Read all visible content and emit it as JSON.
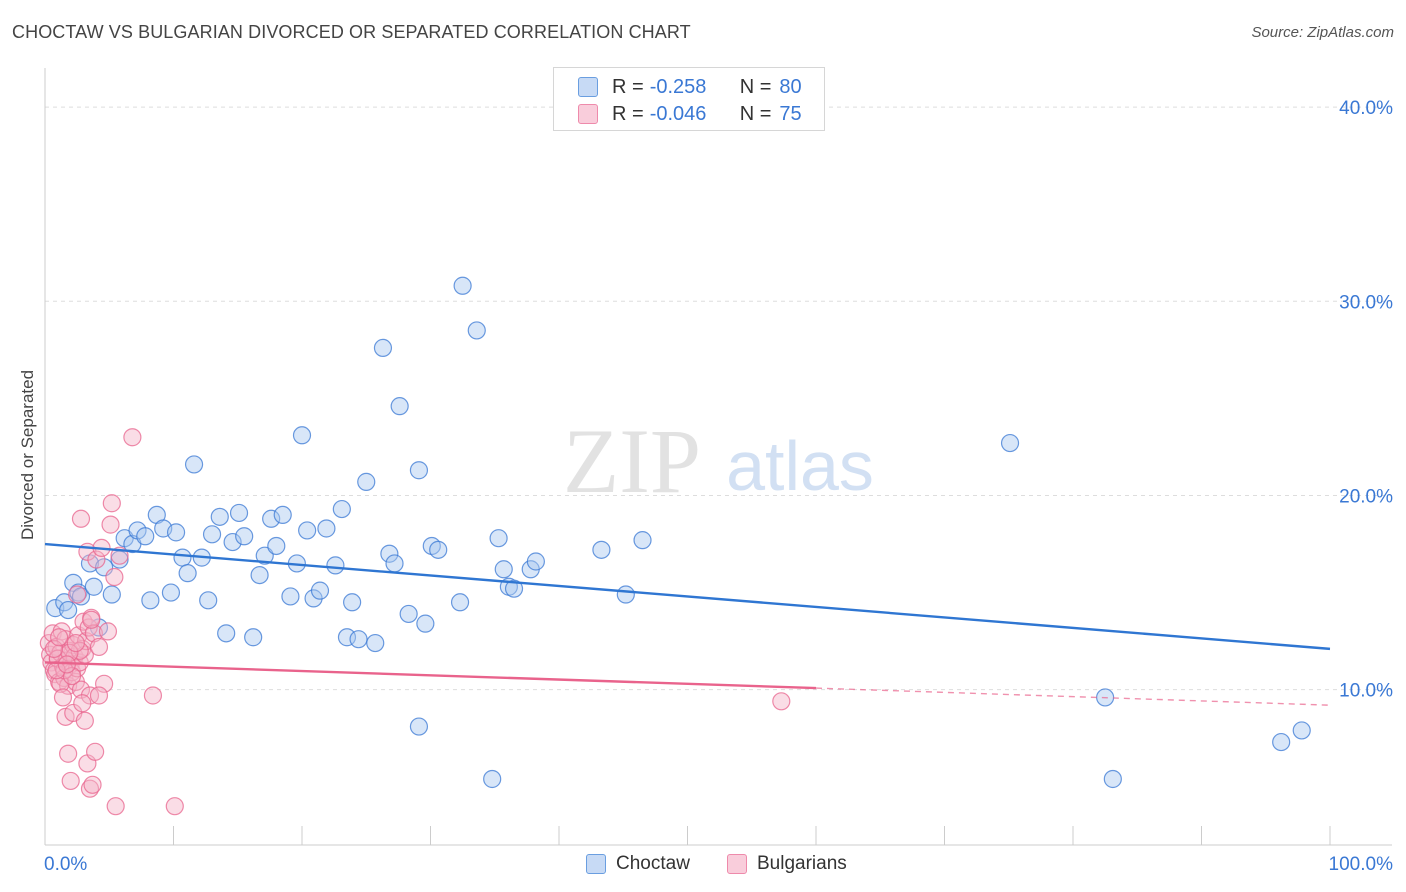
{
  "title": "CHOCTAW VS BULGARIAN DIVORCED OR SEPARATED CORRELATION CHART",
  "source": "Source: ZipAtlas.com",
  "watermark": {
    "zip": "ZIP",
    "atlas": "atlas"
  },
  "colors": {
    "blue": "#3a78d4",
    "blue_fill": "#a9c8f0",
    "blue_line": "#2f76d2",
    "pink": "#e8648e",
    "pink_fill": "#f5b3c8",
    "pink_line": "#e9638c",
    "axis_text": "#3a78d4",
    "grid": "#dddddd"
  },
  "legend": {
    "blue": {
      "r_label": "R =",
      "r_value": "-0.258",
      "n_label": "N =",
      "n_value": "80"
    },
    "pink": {
      "r_label": "R =",
      "r_value": "-0.046",
      "n_label": "N =",
      "n_value": "75"
    }
  },
  "chart_data": {
    "type": "scatter",
    "title": "CHOCTAW VS BULGARIAN DIVORCED OR SEPARATED CORRELATION CHART",
    "xlabel": "",
    "ylabel": "Divorced or Separated",
    "xlim": [
      0,
      100
    ],
    "ylim": [
      2,
      41.5
    ],
    "x_tick_labels": {
      "left": "0.0%",
      "right": "100.0%"
    },
    "y_ticks": [
      {
        "value": 10,
        "label": "10.0%"
      },
      {
        "value": 20,
        "label": "20.0%"
      },
      {
        "value": 30,
        "label": "30.0%"
      },
      {
        "value": 40,
        "label": "40.0%"
      }
    ],
    "grid": true,
    "legend_position": "top-center",
    "series": [
      {
        "name": "Choctaw",
        "color": "blue",
        "trend": {
          "x0": 0,
          "y0": 17.5,
          "x1": 100,
          "y1": 12.1,
          "dash_from": null
        },
        "points": [
          [
            0.8,
            14.2
          ],
          [
            1.5,
            14.5
          ],
          [
            1.8,
            14.1
          ],
          [
            2.2,
            15.5
          ],
          [
            2.6,
            15.0
          ],
          [
            2.8,
            14.8
          ],
          [
            3.5,
            16.5
          ],
          [
            3.8,
            15.3
          ],
          [
            4.2,
            13.2
          ],
          [
            4.6,
            16.3
          ],
          [
            5.2,
            14.9
          ],
          [
            5.8,
            16.7
          ],
          [
            6.2,
            17.8
          ],
          [
            6.8,
            17.5
          ],
          [
            7.2,
            18.2
          ],
          [
            7.8,
            17.9
          ],
          [
            8.2,
            14.6
          ],
          [
            8.7,
            19.0
          ],
          [
            9.2,
            18.3
          ],
          [
            9.8,
            15.0
          ],
          [
            10.2,
            18.1
          ],
          [
            10.7,
            16.8
          ],
          [
            11.1,
            16.0
          ],
          [
            11.6,
            21.6
          ],
          [
            12.2,
            16.8
          ],
          [
            12.7,
            14.6
          ],
          [
            13.0,
            18.0
          ],
          [
            13.6,
            18.9
          ],
          [
            14.1,
            12.9
          ],
          [
            14.6,
            17.6
          ],
          [
            15.1,
            19.1
          ],
          [
            15.5,
            17.9
          ],
          [
            16.2,
            12.7
          ],
          [
            16.7,
            15.9
          ],
          [
            17.1,
            16.9
          ],
          [
            17.6,
            18.8
          ],
          [
            18.0,
            17.4
          ],
          [
            18.5,
            19.0
          ],
          [
            19.1,
            14.8
          ],
          [
            19.6,
            16.5
          ],
          [
            20.0,
            23.1
          ],
          [
            20.4,
            18.2
          ],
          [
            20.9,
            14.7
          ],
          [
            21.4,
            15.1
          ],
          [
            21.9,
            18.3
          ],
          [
            22.6,
            16.4
          ],
          [
            23.1,
            19.3
          ],
          [
            23.5,
            12.7
          ],
          [
            23.9,
            14.5
          ],
          [
            24.4,
            12.6
          ],
          [
            25.0,
            20.7
          ],
          [
            25.7,
            12.4
          ],
          [
            26.3,
            27.6
          ],
          [
            26.8,
            17.0
          ],
          [
            27.2,
            16.5
          ],
          [
            27.6,
            24.6
          ],
          [
            28.3,
            13.9
          ],
          [
            29.1,
            21.3
          ],
          [
            29.6,
            13.4
          ],
          [
            30.1,
            17.4
          ],
          [
            30.6,
            17.2
          ],
          [
            32.3,
            14.5
          ],
          [
            32.5,
            30.8
          ],
          [
            33.6,
            28.5
          ],
          [
            34.8,
            5.4
          ],
          [
            35.3,
            17.8
          ],
          [
            35.7,
            16.2
          ],
          [
            36.1,
            15.3
          ],
          [
            36.5,
            15.2
          ],
          [
            37.8,
            16.2
          ],
          [
            38.2,
            16.6
          ],
          [
            29.1,
            8.1
          ],
          [
            43.3,
            17.2
          ],
          [
            45.2,
            14.9
          ],
          [
            46.5,
            17.7
          ],
          [
            75.1,
            22.7
          ],
          [
            82.5,
            9.6
          ],
          [
            83.1,
            5.4
          ],
          [
            96.2,
            7.3
          ],
          [
            97.8,
            7.9
          ]
        ]
      },
      {
        "name": "Bulgarians",
        "color": "pink",
        "trend": {
          "x0": 0,
          "y0": 11.4,
          "x1": 100,
          "y1": 9.2,
          "dash_from": 60
        },
        "points": [
          [
            0.3,
            12.4
          ],
          [
            0.4,
            11.8
          ],
          [
            0.5,
            11.4
          ],
          [
            0.6,
            12.9
          ],
          [
            0.7,
            11.0
          ],
          [
            0.8,
            10.8
          ],
          [
            0.9,
            12.2
          ],
          [
            1.0,
            11.6
          ],
          [
            1.1,
            10.4
          ],
          [
            1.2,
            11.9
          ],
          [
            1.3,
            13.0
          ],
          [
            1.4,
            11.2
          ],
          [
            1.5,
            10.6
          ],
          [
            1.6,
            12.6
          ],
          [
            1.7,
            11.5
          ],
          [
            1.8,
            10.2
          ],
          [
            1.9,
            12.0
          ],
          [
            2.0,
            11.3
          ],
          [
            2.1,
            10.9
          ],
          [
            2.2,
            12.3
          ],
          [
            2.3,
            11.7
          ],
          [
            2.4,
            10.4
          ],
          [
            2.5,
            11.1
          ],
          [
            2.6,
            12.8
          ],
          [
            2.7,
            11.4
          ],
          [
            2.8,
            10.0
          ],
          [
            2.9,
            12.1
          ],
          [
            3.0,
            13.5
          ],
          [
            3.1,
            11.8
          ],
          [
            3.2,
            12.5
          ],
          [
            3.3,
            17.1
          ],
          [
            3.4,
            13.2
          ],
          [
            3.5,
            9.7
          ],
          [
            3.6,
            13.7
          ],
          [
            3.8,
            12.9
          ],
          [
            4.0,
            16.7
          ],
          [
            4.2,
            12.2
          ],
          [
            4.4,
            17.3
          ],
          [
            4.6,
            10.3
          ],
          [
            4.9,
            13.0
          ],
          [
            5.2,
            19.6
          ],
          [
            5.4,
            15.8
          ],
          [
            5.8,
            16.9
          ],
          [
            6.8,
            23.0
          ],
          [
            8.4,
            9.7
          ],
          [
            1.2,
            10.3
          ],
          [
            1.4,
            9.6
          ],
          [
            1.6,
            8.6
          ],
          [
            1.8,
            6.7
          ],
          [
            2.0,
            5.3
          ],
          [
            2.2,
            8.8
          ],
          [
            2.5,
            14.9
          ],
          [
            2.7,
            12.0
          ],
          [
            2.9,
            9.3
          ],
          [
            3.1,
            8.4
          ],
          [
            3.3,
            6.2
          ],
          [
            3.5,
            4.9
          ],
          [
            3.7,
            5.1
          ],
          [
            3.9,
            6.8
          ],
          [
            4.2,
            9.7
          ],
          [
            2.8,
            18.8
          ],
          [
            5.1,
            18.5
          ],
          [
            5.5,
            4.0
          ],
          [
            10.1,
            4.0
          ],
          [
            57.3,
            9.4
          ],
          [
            1.0,
            11.6
          ],
          [
            1.5,
            11.0
          ],
          [
            1.9,
            11.9
          ],
          [
            2.4,
            12.4
          ],
          [
            0.7,
            12.1
          ],
          [
            1.1,
            12.7
          ],
          [
            2.1,
            10.7
          ],
          [
            3.6,
            13.6
          ],
          [
            0.9,
            11.0
          ],
          [
            1.7,
            11.3
          ]
        ]
      }
    ]
  },
  "bottom_legend": {
    "blue_label": "Choctaw",
    "pink_label": "Bulgarians"
  }
}
